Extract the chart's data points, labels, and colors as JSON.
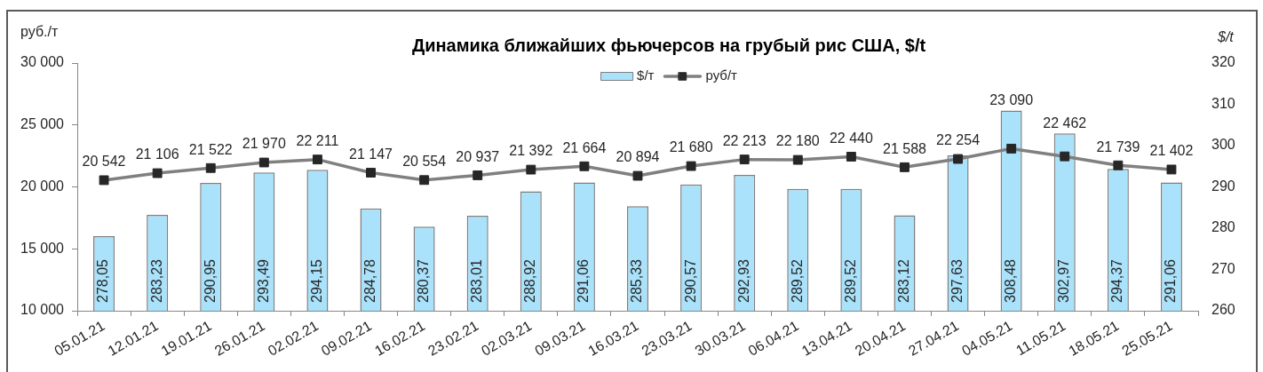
{
  "chart_data": {
    "type": "bar",
    "title": "Динамика ближайших фьючерсов на грубый рис США, $/t",
    "ylabel": "руб./т",
    "y2label": "$/t",
    "categories": [
      "05.01.21",
      "12.01.21",
      "19.01.21",
      "26.01.21",
      "02.02.21",
      "09.02.21",
      "16.02.21",
      "23.02.21",
      "02.03.21",
      "09.03.21",
      "16.03.21",
      "23.03.21",
      "30.03.21",
      "06.04.21",
      "13.04.21",
      "20.04.21",
      "27.04.21",
      "04.05.21",
      "11.05.21",
      "18.05.21",
      "25.05.21"
    ],
    "series": [
      {
        "name": "$/т",
        "type": "bar",
        "axis": "y2",
        "color": "#a9e2fa",
        "values": [
          278.05,
          283.23,
          290.95,
          293.49,
          294.15,
          284.78,
          280.37,
          283.01,
          288.92,
          291.06,
          285.33,
          290.57,
          292.93,
          289.52,
          289.52,
          283.12,
          297.63,
          308.48,
          302.97,
          294.37,
          291.06
        ],
        "value_labels": [
          "278,05",
          "283,23",
          "290,95",
          "293,49",
          "294,15",
          "284,78",
          "280,37",
          "283,01",
          "288,92",
          "291,06",
          "285,33",
          "290,57",
          "292,93",
          "289,52",
          "289,52",
          "283,12",
          "297,63",
          "308,48",
          "302,97",
          "294,37",
          "291,06"
        ]
      },
      {
        "name": "руб/т",
        "type": "line",
        "color": "#808080",
        "values": [
          20542,
          21106,
          21522,
          21970,
          22211,
          21147,
          20554,
          20937,
          21392,
          21664,
          20894,
          21680,
          22213,
          22180,
          22440,
          21588,
          22254,
          23090,
          22462,
          21739,
          21402
        ],
        "value_labels": [
          "20 542",
          "21 106",
          "21 522",
          "21 970",
          "22 211",
          "21 147",
          "20 554",
          "20 937",
          "21 392",
          "21 664",
          "20 894",
          "21 680",
          "22 213",
          "22 180",
          "22 440",
          "21 588",
          "22 254",
          "23 090",
          "22 462",
          "21 739",
          "21 402"
        ]
      }
    ],
    "ylim": [
      10000,
      30000
    ],
    "yticks": [
      {
        "value": 10000,
        "label": "10 000"
      },
      {
        "value": 15000,
        "label": "15 000"
      },
      {
        "value": 20000,
        "label": "20 000"
      },
      {
        "value": 25000,
        "label": "25 000"
      },
      {
        "value": 30000,
        "label": "30 000"
      }
    ],
    "y2lim": [
      260,
      320
    ],
    "y2ticks": [
      260,
      270,
      280,
      290,
      300,
      310,
      320
    ],
    "marker": "square",
    "legend": "top"
  }
}
